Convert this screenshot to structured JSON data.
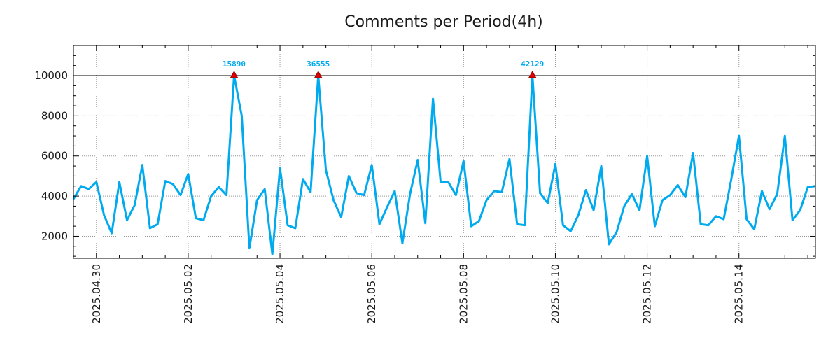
{
  "chart_data": {
    "type": "line",
    "title": "Comments per Period(4h)",
    "xlabel": "",
    "ylabel": "",
    "ylim": [
      900,
      11500
    ],
    "yticks": [
      "2000",
      "4000",
      "6000",
      "8000",
      "10000"
    ],
    "ytick_values": [
      2000,
      4000,
      6000,
      8000,
      10000
    ],
    "xticks": [
      "2025.04.30",
      "2025.05.02",
      "2025.05.04",
      "2025.05.06",
      "2025.05.08",
      "2025.05.10",
      "2025.05.12",
      "2025.05.14"
    ],
    "xtick_indices": [
      3,
      15,
      27,
      39,
      51,
      63,
      75,
      87
    ],
    "x_count": 98,
    "grid": true,
    "clip_line_value": 10000,
    "series": [
      {
        "name": "Comments",
        "color": "#00aaee",
        "values": [
          3850,
          4500,
          4350,
          4700,
          3050,
          2150,
          4700,
          2800,
          3550,
          5550,
          2400,
          2600,
          4750,
          4600,
          4050,
          5100,
          2900,
          2800,
          4000,
          4450,
          4050,
          10000,
          8000,
          1400,
          3800,
          4350,
          1100,
          5400,
          2550,
          2400,
          4850,
          4200,
          10000,
          5300,
          3800,
          2950,
          5000,
          4150,
          4050,
          5550,
          2600,
          3450,
          4250,
          1650,
          4100,
          5800,
          2650,
          8850,
          4700,
          4700,
          4050,
          5750,
          2500,
          2750,
          3800,
          4250,
          4200,
          5850,
          2600,
          2550,
          10000,
          4150,
          3650,
          5600,
          2550,
          2250,
          3050,
          4300,
          3300,
          5500,
          1600,
          2200,
          3500,
          4100,
          3300,
          6000,
          2500,
          3800,
          4050,
          4550,
          3950,
          6150,
          2600,
          2550,
          3000,
          2850,
          4850,
          7000,
          2850,
          2350,
          4250,
          3350,
          4100,
          7000,
          2800,
          3300,
          4450,
          4500
        ]
      }
    ],
    "peaks": [
      {
        "index": 21,
        "label": "15890"
      },
      {
        "index": 32,
        "label": "36555"
      },
      {
        "index": 60,
        "label": "42129"
      }
    ],
    "peak_marker_color": "#dd0000",
    "peak_label_color": "#00aaee"
  }
}
